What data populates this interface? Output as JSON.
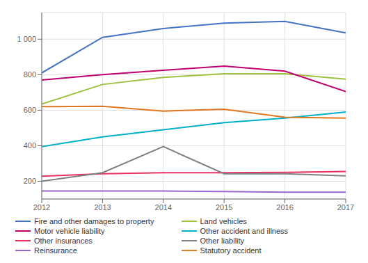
{
  "chart_data": {
    "type": "line",
    "x": [
      2012,
      2013,
      2014,
      2015,
      2016,
      2017
    ],
    "series": [
      {
        "name": "Fire and other damages to property",
        "color": "#4472c4",
        "values": [
          810,
          1010,
          1060,
          1090,
          1100,
          1035
        ]
      },
      {
        "name": "Land vehicles",
        "color": "#9dc13f",
        "values": [
          635,
          745,
          785,
          805,
          805,
          775
        ]
      },
      {
        "name": "Motor vehicle liability",
        "color": "#c00070",
        "values": [
          770,
          800,
          825,
          848,
          820,
          705
        ]
      },
      {
        "name": "Other accident and illness",
        "color": "#00b0c8",
        "values": [
          395,
          450,
          490,
          530,
          555,
          590
        ]
      },
      {
        "name": "Statutory accident",
        "color": "#e07820",
        "values": [
          620,
          622,
          595,
          605,
          560,
          555
        ]
      },
      {
        "name": "Other insurances",
        "color": "#e83060",
        "values": [
          228,
          242,
          248,
          248,
          250,
          255
        ]
      },
      {
        "name": "Other liability",
        "color": "#808080",
        "values": [
          200,
          248,
          395,
          242,
          242,
          230
        ]
      },
      {
        "name": "Reinsurance",
        "color": "#9966cc",
        "values": [
          145,
          145,
          145,
          142,
          138,
          138
        ]
      }
    ],
    "xlim": [
      2012,
      2017
    ],
    "ylim": [
      100,
      1150
    ],
    "xticks": [
      2012,
      2013,
      2014,
      2015,
      2016,
      2017
    ],
    "yticks": [
      200,
      400,
      600,
      800,
      {
        "value": 1000,
        "label": "1 000"
      }
    ],
    "grid": true,
    "legend": "bottom"
  }
}
